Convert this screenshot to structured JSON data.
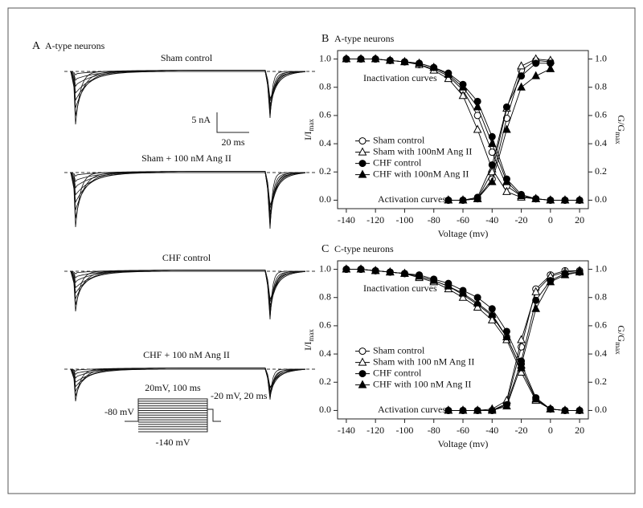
{
  "panel_a": {
    "letter": "A",
    "title": "A-type neurons",
    "traces": [
      "Sham control",
      "Sham + 100 nM Ang II",
      "CHF control",
      "CHF + 100 nM Ang II"
    ],
    "scale": {
      "current": "5 nA",
      "time": "20 ms"
    },
    "protocol": {
      "step": "20mV, 100 ms",
      "hold": "-80 mV",
      "post": "-20 mV, 20 ms",
      "min": "-140 mV"
    }
  },
  "chart_data": [
    {
      "type": "line",
      "letter": "B",
      "title": "A-type neurons",
      "xlabel": "Voltage (mv)",
      "ylabel": [
        "I/I",
        "max"
      ],
      "y2label": [
        "G/G",
        "max"
      ],
      "annotations": [
        "Inactivation curves",
        "Activation curves"
      ],
      "legend": "lower left",
      "x": [
        -140,
        -130,
        -120,
        -110,
        -100,
        -90,
        -80,
        -70,
        -60,
        -50,
        -40,
        -30,
        -20,
        -10,
        0,
        10,
        20
      ],
      "xlim": [
        -146,
        26
      ],
      "ylim": [
        -0.06,
        1.06
      ],
      "y2lim": [
        -0.06,
        1.06
      ],
      "xticks": [
        -140,
        -120,
        -100,
        -80,
        -60,
        -40,
        -20,
        0,
        20
      ],
      "yticks": [
        {
          "value": 0,
          "label": "0.0"
        },
        {
          "value": 0.2,
          "label": "0.2"
        },
        {
          "value": 0.4,
          "label": "0.4"
        },
        {
          "value": 0.6,
          "label": "0.6"
        },
        {
          "value": 0.8,
          "label": "0.8"
        },
        {
          "value": 1,
          "label": "1.0"
        }
      ],
      "y2ticks": [
        {
          "value": 0,
          "label": "0.0"
        },
        {
          "value": 0.2,
          "label": "0.2"
        },
        {
          "value": 0.4,
          "label": "0.4"
        },
        {
          "value": 0.6,
          "label": "0.6"
        },
        {
          "value": 0.8,
          "label": "0.8"
        },
        {
          "value": 1,
          "label": "1.0"
        }
      ],
      "series": [
        {
          "name": "Sham control",
          "marker": "open-circle",
          "color": "#000000",
          "values": [
            1,
            1,
            1,
            0.99,
            0.98,
            0.96,
            0.93,
            0.88,
            0.78,
            0.6,
            0.34,
            0.1,
            0.03,
            0.01,
            0,
            0,
            0
          ],
          "activation_values": [
            null,
            null,
            null,
            null,
            null,
            null,
            null,
            0,
            0,
            0.01,
            0.15,
            0.58,
            0.92,
            0.99,
            0.98,
            null,
            null
          ]
        },
        {
          "name": "Sham with 100nM Ang II",
          "marker": "open-triangle",
          "color": "#000000",
          "values": [
            1,
            1,
            1,
            0.99,
            0.98,
            0.96,
            0.92,
            0.86,
            0.74,
            0.5,
            0.22,
            0.06,
            0.02,
            0.01,
            0,
            0,
            0
          ],
          "activation_values": [
            null,
            null,
            null,
            null,
            null,
            null,
            null,
            0,
            0,
            0.01,
            0.2,
            0.65,
            0.95,
            1,
            0.99,
            null,
            null
          ]
        },
        {
          "name": "CHF control",
          "marker": "filled-circle",
          "color": "#000000",
          "values": [
            1,
            1,
            1,
            0.99,
            0.98,
            0.97,
            0.94,
            0.9,
            0.82,
            0.7,
            0.45,
            0.15,
            0.04,
            0.01,
            0,
            0,
            0
          ],
          "activation_values": [
            null,
            null,
            null,
            null,
            null,
            null,
            null,
            0,
            0,
            0.02,
            0.25,
            0.66,
            0.88,
            0.97,
            0.97,
            null,
            null
          ]
        },
        {
          "name": "CHF with 100nM Ang II",
          "marker": "filled-triangle",
          "color": "#000000",
          "values": [
            1,
            1,
            1,
            0.99,
            0.98,
            0.97,
            0.94,
            0.89,
            0.8,
            0.66,
            0.4,
            0.13,
            0.03,
            0.01,
            0,
            0,
            0
          ],
          "activation_values": [
            null,
            null,
            null,
            null,
            null,
            null,
            null,
            0,
            0,
            0.01,
            0.13,
            0.5,
            0.8,
            0.88,
            0.93,
            null,
            null
          ]
        }
      ]
    },
    {
      "type": "line",
      "letter": "C",
      "title": "C-type neurons",
      "xlabel": "Voltage (mv)",
      "ylabel": [
        "I/I",
        "max"
      ],
      "y2label": [
        "G/G",
        "max"
      ],
      "annotations": [
        "Inactivation curves",
        "Activation curves"
      ],
      "legend": "lower left",
      "x": [
        -140,
        -130,
        -120,
        -110,
        -100,
        -90,
        -80,
        -70,
        -60,
        -50,
        -40,
        -30,
        -20,
        -10,
        0,
        10,
        20
      ],
      "xlim": [
        -146,
        26
      ],
      "ylim": [
        -0.06,
        1.06
      ],
      "y2lim": [
        -0.06,
        1.06
      ],
      "xticks": [
        -140,
        -120,
        -100,
        -80,
        -60,
        -40,
        -20,
        0,
        20
      ],
      "yticks": [
        {
          "value": 0,
          "label": "0.0"
        },
        {
          "value": 0.2,
          "label": "0.2"
        },
        {
          "value": 0.4,
          "label": "0.4"
        },
        {
          "value": 0.6,
          "label": "0.6"
        },
        {
          "value": 0.8,
          "label": "0.8"
        },
        {
          "value": 1,
          "label": "1.0"
        }
      ],
      "y2ticks": [
        {
          "value": 0,
          "label": "0.0"
        },
        {
          "value": 0.2,
          "label": "0.2"
        },
        {
          "value": 0.4,
          "label": "0.4"
        },
        {
          "value": 0.6,
          "label": "0.6"
        },
        {
          "value": 0.8,
          "label": "0.8"
        },
        {
          "value": 1,
          "label": "1.0"
        }
      ],
      "series": [
        {
          "name": "Sham control",
          "marker": "open-circle",
          "color": "#000000",
          "values": [
            1,
            1,
            0.99,
            0.98,
            0.97,
            0.95,
            0.92,
            0.88,
            0.82,
            0.75,
            0.67,
            0.52,
            0.3,
            0.08,
            0.01,
            0,
            0
          ],
          "activation_values": [
            null,
            null,
            null,
            null,
            null,
            null,
            null,
            0,
            0,
            0,
            0,
            0.05,
            0.45,
            0.86,
            0.96,
            0.99,
            0.99
          ]
        },
        {
          "name": "Sham with 100 nM Ang II",
          "marker": "open-triangle",
          "color": "#000000",
          "values": [
            1,
            1,
            0.99,
            0.98,
            0.97,
            0.94,
            0.91,
            0.86,
            0.8,
            0.73,
            0.64,
            0.5,
            0.27,
            0.07,
            0.01,
            0,
            0
          ],
          "activation_values": [
            null,
            null,
            null,
            null,
            null,
            null,
            null,
            0,
            0,
            0,
            0.01,
            0.07,
            0.5,
            0.84,
            0.95,
            0.98,
            0.99
          ]
        },
        {
          "name": "CHF control",
          "marker": "filled-circle",
          "color": "#000000",
          "values": [
            1,
            1,
            0.99,
            0.98,
            0.97,
            0.96,
            0.93,
            0.9,
            0.85,
            0.8,
            0.72,
            0.56,
            0.33,
            0.09,
            0.01,
            0,
            0
          ],
          "activation_values": [
            null,
            null,
            null,
            null,
            null,
            null,
            null,
            0,
            0,
            0,
            0,
            0.04,
            0.35,
            0.78,
            0.92,
            0.97,
            0.98
          ]
        },
        {
          "name": "CHF with 100 nM Ang II",
          "marker": "filled-triangle",
          "color": "#000000",
          "values": [
            1,
            1,
            0.99,
            0.98,
            0.97,
            0.95,
            0.92,
            0.88,
            0.83,
            0.76,
            0.68,
            0.52,
            0.3,
            0.08,
            0.01,
            0,
            0
          ],
          "activation_values": [
            null,
            null,
            null,
            null,
            null,
            null,
            null,
            0,
            0,
            0,
            0,
            0.03,
            0.32,
            0.72,
            0.91,
            0.96,
            0.98
          ]
        }
      ]
    }
  ]
}
